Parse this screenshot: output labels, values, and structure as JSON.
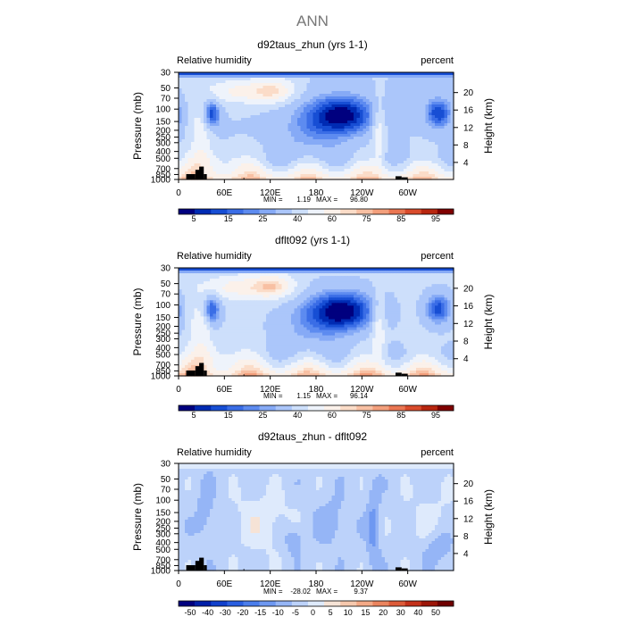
{
  "figure": {
    "title": "ANN"
  },
  "colors": {
    "abs_scale": [
      "#00007f",
      "#002bb3",
      "#174ed4",
      "#3a6de6",
      "#5d8bf0",
      "#86aaf6",
      "#abc6fa",
      "#cddffb",
      "#eef3fb",
      "#fbf1ea",
      "#fbdcc8",
      "#f8c0a3",
      "#f39f7c",
      "#ea7652",
      "#d94b2c",
      "#b8260f",
      "#800000"
    ],
    "diff_scale": [
      "#00007f",
      "#001fa8",
      "#1140cc",
      "#2a5fe0",
      "#4a7deb",
      "#6e98f1",
      "#95b5f6",
      "#bcd2fa",
      "#deeafc",
      "#f6e3d6",
      "#f6c8ad",
      "#f3a986",
      "#ea845e",
      "#dc5b39",
      "#c3311a",
      "#9c1608",
      "#700000"
    ],
    "terrain": "#000000"
  },
  "chart_data": [
    {
      "type": "heatmap",
      "panel_title": "d92taus_zhun (yrs 1-1)",
      "left_label": "Relative humidity",
      "right_label": "percent",
      "ylabel": "Pressure (mb)",
      "y2label": "Height (km)",
      "x_ticks": [
        "0",
        "60E",
        "120E",
        "180",
        "120W",
        "60W"
      ],
      "y_ticks": [
        "30",
        "50",
        "70",
        "100",
        "150",
        "200",
        "250",
        "300",
        "400",
        "500",
        "700",
        "850",
        "1000"
      ],
      "y2_ticks": [
        "20",
        "16",
        "12",
        "8",
        "4"
      ],
      "stats": {
        "min_label": "MIN =",
        "min": "1.19",
        "max_label": "MAX =",
        "max": "96.80"
      },
      "colorbar_labels": [
        "5",
        "15",
        "25",
        "40",
        "60",
        "75",
        "85",
        "95"
      ],
      "min": 1.19,
      "max": 96.8
    },
    {
      "type": "heatmap",
      "panel_title": "dflt092 (yrs 1-1)",
      "left_label": "Relative humidity",
      "right_label": "percent",
      "ylabel": "Pressure (mb)",
      "y2label": "Height (km)",
      "x_ticks": [
        "0",
        "60E",
        "120E",
        "180",
        "120W",
        "60W"
      ],
      "y_ticks": [
        "30",
        "50",
        "70",
        "100",
        "150",
        "200",
        "250",
        "300",
        "400",
        "500",
        "700",
        "850",
        "1000"
      ],
      "y2_ticks": [
        "20",
        "16",
        "12",
        "8",
        "4"
      ],
      "stats": {
        "min_label": "MIN =",
        "min": "1.15",
        "max_label": "MAX =",
        "max": "96.14"
      },
      "colorbar_labels": [
        "5",
        "15",
        "25",
        "40",
        "60",
        "75",
        "85",
        "95"
      ],
      "min": 1.15,
      "max": 96.14
    },
    {
      "type": "heatmap",
      "panel_title": "d92taus_zhun - dflt092",
      "left_label": "Relative humidity",
      "right_label": "percent",
      "ylabel": "Pressure (mb)",
      "y2label": "Height (km)",
      "x_ticks": [
        "0",
        "60E",
        "120E",
        "180",
        "120W",
        "60W"
      ],
      "y_ticks": [
        "30",
        "50",
        "70",
        "100",
        "150",
        "200",
        "250",
        "300",
        "400",
        "500",
        "700",
        "850",
        "1000"
      ],
      "y2_ticks": [
        "20",
        "16",
        "12",
        "8",
        "4"
      ],
      "stats": {
        "min_label": "MIN =",
        "min": "-28.02",
        "max_label": "MAX =",
        "max": "9.37"
      },
      "colorbar_labels": [
        "-50",
        "-40",
        "-30",
        "-20",
        "-15",
        "-10",
        "-5",
        "0",
        "5",
        "10",
        "15",
        "20",
        "30",
        "40",
        "50"
      ],
      "min": -28.02,
      "max": 9.37
    }
  ]
}
